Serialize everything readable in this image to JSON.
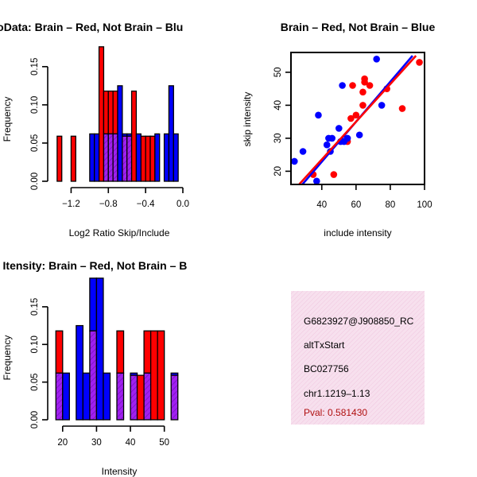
{
  "colors": {
    "brain": "#ff0000",
    "not_brain": "#0000ff",
    "overlap": "#a020f0",
    "info_bg": "#f5d5e8",
    "pval": "#b01010"
  },
  "chart_data": [
    {
      "type": "bar",
      "title": "RatioData: Brain – Red, Not Brain – Blu",
      "xlabel": "Log2 Ratio Skip/Include",
      "ylabel": "Frequency",
      "xlim": [
        -1.4,
        0.0
      ],
      "ylim": [
        0,
        0.18
      ],
      "xticks": [
        -1.2,
        -0.8,
        -0.4,
        0.0
      ],
      "xtick_labels": [
        "−1.2",
        "−0.8",
        "−0.4",
        "0.0"
      ],
      "yticks": [
        0.0,
        0.05,
        0.1,
        0.15
      ],
      "ytick_labels": [
        "0.00",
        "0.05",
        "0.10",
        "0.15"
      ],
      "series": [
        {
          "name": "Brain",
          "bins": [
            {
              "x0": -1.35,
              "x1": -1.3,
              "y": 0.059
            },
            {
              "x0": -1.2,
              "x1": -1.15,
              "y": 0.059
            },
            {
              "x0": -0.9,
              "x1": -0.85,
              "y": 0.176
            },
            {
              "x0": -0.85,
              "x1": -0.8,
              "y": 0.118
            },
            {
              "x0": -0.8,
              "x1": -0.75,
              "y": 0.118
            },
            {
              "x0": -0.75,
              "x1": -0.7,
              "y": 0.118
            },
            {
              "x0": -0.65,
              "x1": -0.6,
              "y": 0.059
            },
            {
              "x0": -0.6,
              "x1": -0.55,
              "y": 0.059
            },
            {
              "x0": -0.55,
              "x1": -0.5,
              "y": 0.118
            },
            {
              "x0": -0.45,
              "x1": -0.4,
              "y": 0.059
            },
            {
              "x0": -0.4,
              "x1": -0.35,
              "y": 0.059
            },
            {
              "x0": -0.35,
              "x1": -0.3,
              "y": 0.059
            }
          ]
        },
        {
          "name": "Not Brain",
          "bins": [
            {
              "x0": -1.0,
              "x1": -0.95,
              "y": 0.062
            },
            {
              "x0": -0.95,
              "x1": -0.9,
              "y": 0.062
            },
            {
              "x0": -0.85,
              "x1": -0.8,
              "y": 0.062
            },
            {
              "x0": -0.8,
              "x1": -0.75,
              "y": 0.062
            },
            {
              "x0": -0.75,
              "x1": -0.7,
              "y": 0.062
            },
            {
              "x0": -0.7,
              "x1": -0.65,
              "y": 0.125
            },
            {
              "x0": -0.65,
              "x1": -0.6,
              "y": 0.062
            },
            {
              "x0": -0.6,
              "x1": -0.55,
              "y": 0.062
            },
            {
              "x0": -0.5,
              "x1": -0.45,
              "y": 0.062
            },
            {
              "x0": -0.3,
              "x1": -0.25,
              "y": 0.062
            },
            {
              "x0": -0.2,
              "x1": -0.15,
              "y": 0.062
            },
            {
              "x0": -0.15,
              "x1": -0.1,
              "y": 0.125
            },
            {
              "x0": -0.1,
              "x1": -0.05,
              "y": 0.062
            }
          ]
        }
      ]
    },
    {
      "type": "scatter",
      "title": "Brain – Red, Not Brain – Blue",
      "xlabel": "include intensity",
      "ylabel": "skip intensity",
      "xlim": [
        22,
        100
      ],
      "ylim": [
        16,
        56
      ],
      "xticks": [
        40,
        60,
        80,
        100
      ],
      "xtick_labels": [
        "40",
        "60",
        "80",
        "100"
      ],
      "yticks": [
        20,
        30,
        40,
        50
      ],
      "ytick_labels": [
        "20",
        "30",
        "40",
        "50"
      ],
      "series": [
        {
          "name": "Brain",
          "points": [
            [
              35,
              19
            ],
            [
              47,
              19
            ],
            [
              55,
              29
            ],
            [
              57,
              36
            ],
            [
              58,
              46
            ],
            [
              60,
              37
            ],
            [
              64,
              40
            ],
            [
              64,
              44
            ],
            [
              65,
              47
            ],
            [
              65,
              48
            ],
            [
              68,
              46
            ],
            [
              78,
              45
            ],
            [
              87,
              39
            ],
            [
              97,
              53
            ]
          ],
          "fit": {
            "x0": 25,
            "y0": 15,
            "x1": 95,
            "y1": 55
          }
        },
        {
          "name": "Not Brain",
          "points": [
            [
              24,
              23
            ],
            [
              29,
              26
            ],
            [
              37,
              17
            ],
            [
              38,
              37
            ],
            [
              43,
              28
            ],
            [
              44,
              30
            ],
            [
              45,
              26
            ],
            [
              46,
              30
            ],
            [
              50,
              33
            ],
            [
              51,
              29
            ],
            [
              53,
              29
            ],
            [
              52,
              46
            ],
            [
              55,
              30
            ],
            [
              62,
              31
            ],
            [
              72,
              54
            ],
            [
              75,
              40
            ]
          ],
          "fit": {
            "x0": 27,
            "y0": 15,
            "x1": 93,
            "y1": 55
          }
        }
      ]
    },
    {
      "type": "bar",
      "title": "Gene Itensity: Brain – Red, Not Brain – B",
      "xlabel": "Intensity",
      "ylabel": "Frequency",
      "xlim": [
        17,
        55
      ],
      "ylim": [
        0,
        0.19
      ],
      "xticks": [
        20,
        30,
        40,
        50
      ],
      "xtick_labels": [
        "20",
        "30",
        "40",
        "50"
      ],
      "yticks": [
        0.0,
        0.05,
        0.1,
        0.15
      ],
      "ytick_labels": [
        "0.00",
        "0.05",
        "0.10",
        "0.15"
      ],
      "series": [
        {
          "name": "Brain",
          "bins": [
            {
              "x0": 18,
              "x1": 20,
              "y": 0.118
            },
            {
              "x0": 28,
              "x1": 30,
              "y": 0.118
            },
            {
              "x0": 36,
              "x1": 38,
              "y": 0.118
            },
            {
              "x0": 40,
              "x1": 42,
              "y": 0.059
            },
            {
              "x0": 42,
              "x1": 44,
              "y": 0.059
            },
            {
              "x0": 44,
              "x1": 46,
              "y": 0.118
            },
            {
              "x0": 46,
              "x1": 48,
              "y": 0.118
            },
            {
              "x0": 48,
              "x1": 50,
              "y": 0.118
            },
            {
              "x0": 52,
              "x1": 54,
              "y": 0.059
            }
          ]
        },
        {
          "name": "Not Brain",
          "bins": [
            {
              "x0": 18,
              "x1": 20,
              "y": 0.062
            },
            {
              "x0": 20,
              "x1": 22,
              "y": 0.062
            },
            {
              "x0": 24,
              "x1": 26,
              "y": 0.125
            },
            {
              "x0": 26,
              "x1": 28,
              "y": 0.062
            },
            {
              "x0": 28,
              "x1": 30,
              "y": 0.188
            },
            {
              "x0": 30,
              "x1": 32,
              "y": 0.188
            },
            {
              "x0": 32,
              "x1": 34,
              "y": 0.062
            },
            {
              "x0": 36,
              "x1": 38,
              "y": 0.062
            },
            {
              "x0": 40,
              "x1": 42,
              "y": 0.062
            },
            {
              "x0": 44,
              "x1": 46,
              "y": 0.062
            },
            {
              "x0": 52,
              "x1": 54,
              "y": 0.062
            }
          ]
        }
      ]
    }
  ],
  "info_panel": {
    "lines": [
      "G6823927@J908850_RC",
      "altTxStart",
      "BC027756",
      "chr1.1219–1.13"
    ],
    "pval": "Pval: 0.581430"
  }
}
